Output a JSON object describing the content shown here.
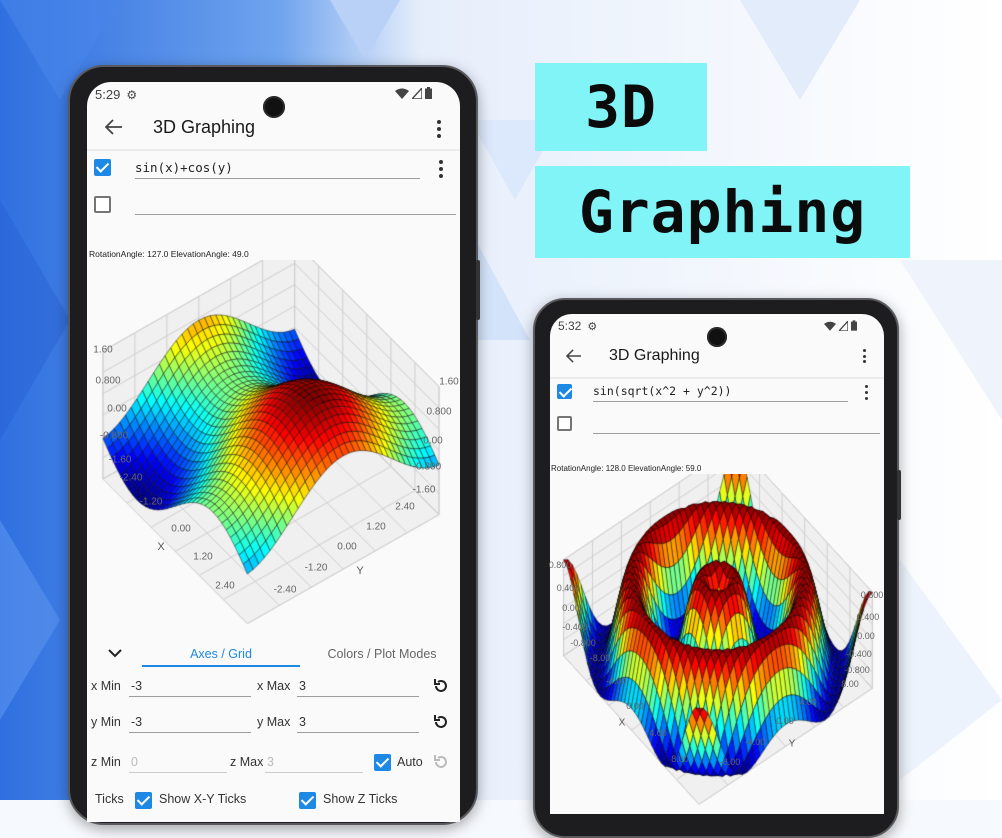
{
  "headline": {
    "line1": "3D",
    "line2": "Graphing",
    "accent_color": "#80f4f6"
  },
  "phone_left": {
    "status": {
      "time": "5:29",
      "icons": [
        "gear-icon",
        "wifi-icon",
        "signal-icon",
        "battery-icon"
      ]
    },
    "appbar": {
      "title": "3D Graphing",
      "back_icon": "arrow-left-icon",
      "menu_icon": "more-vert-icon"
    },
    "functions": [
      {
        "enabled": true,
        "expression": "sin(x)+cos(y)"
      },
      {
        "enabled": false,
        "expression": ""
      }
    ],
    "plot": {
      "angle_label": "RotationAngle: 127.0 ElevationAngle: 49.0",
      "rotation": 127,
      "elevation": 49,
      "x_range": [
        -3,
        3
      ],
      "y_range": [
        -3,
        3
      ],
      "z_range": [
        -2.4,
        1.6
      ],
      "z_ticks_left": [
        "1.60",
        "0.800",
        "0.00",
        "-0.800",
        "-1.60",
        "-2.40"
      ],
      "z_ticks_right": [
        "1.60",
        "0.800",
        "0.00",
        "-0.800",
        "-1.60"
      ],
      "x_ticks": [
        "-1.20",
        "0.00",
        "1.20",
        "2.40"
      ],
      "y_ticks": [
        "2.40",
        "1.20",
        "0.00",
        "-1.20",
        "-2.40"
      ],
      "x_label": "X",
      "y_label": "Y"
    },
    "tabs": [
      {
        "label": "Axes / Grid",
        "active": true
      },
      {
        "label": "Colors / Plot Modes",
        "active": false
      }
    ],
    "settings": {
      "x_min_label": "x Min",
      "x_min": "-3",
      "x_max_label": "x Max",
      "x_max": "3",
      "y_min_label": "y Min",
      "y_min": "-3",
      "y_max_label": "y Max",
      "y_max": "3",
      "z_min_label": "z Min",
      "z_min": "0",
      "z_max_label": "z Max",
      "z_max": "3",
      "auto_label": "Auto",
      "auto": true,
      "ticks_label": "Ticks",
      "show_xy_ticks": "Show X-Y Ticks",
      "show_z_ticks": "Show Z Ticks"
    },
    "accent": "#1e88e5"
  },
  "phone_right": {
    "status": {
      "time": "5:32",
      "icons": [
        "gear-icon",
        "wifi-icon",
        "signal-icon",
        "battery-icon"
      ]
    },
    "appbar": {
      "title": "3D Graphing"
    },
    "functions": [
      {
        "enabled": true,
        "expression": "sin(sqrt(x^2 + y^2))"
      },
      {
        "enabled": false,
        "expression": ""
      }
    ],
    "plot": {
      "angle_label": "RotationAngle: 128.0 ElevationAngle: 59.0",
      "rotation": 128,
      "elevation": 59,
      "x_range": [
        -10,
        10
      ],
      "y_range": [
        -10,
        10
      ],
      "z_range": [
        -1,
        1
      ],
      "z_ticks_left": [
        "0.800",
        "0.400",
        "0.00",
        "-0.400",
        "-0.800"
      ],
      "z_ticks_right": [
        "0.800",
        "0.400",
        "0.00",
        "-0.400",
        "-0.800"
      ],
      "x_ticks": [
        "-8.00",
        "-4.00",
        "0.00",
        "4.00",
        "8.00"
      ],
      "y_ticks": [
        "8.00",
        "4.00",
        "0.00",
        "-4.00",
        "-8.00"
      ],
      "x_label": "X",
      "y_label": "Y"
    }
  }
}
